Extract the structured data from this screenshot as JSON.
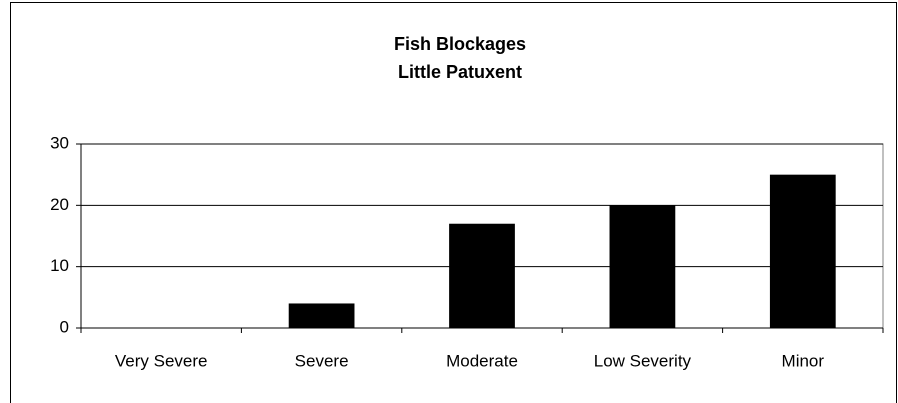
{
  "chart_data": {
    "type": "bar",
    "title": "Fish Blockages",
    "subtitle": "Little Patuxent",
    "categories": [
      "Very Severe",
      "Severe",
      "Moderate",
      "Low Severity",
      "Minor"
    ],
    "values": [
      0,
      4,
      17,
      20,
      25
    ],
    "color": "#000000",
    "ylim": [
      0,
      30
    ],
    "yticks": [
      0,
      10,
      20,
      30
    ],
    "grid": true
  }
}
